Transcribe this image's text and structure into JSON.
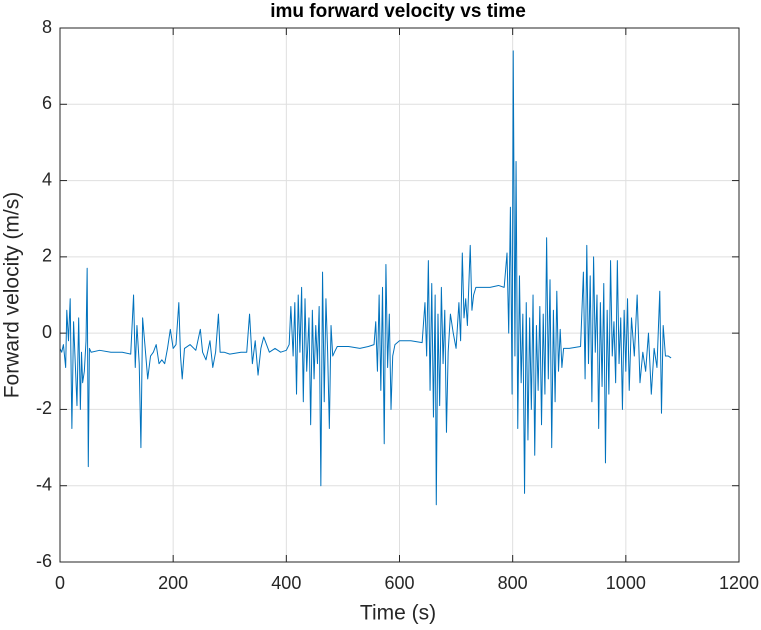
{
  "chart_data": {
    "type": "line",
    "title": "imu forward velocity vs time",
    "xlabel": "Time (s)",
    "ylabel": "Forward velocity (m/s)",
    "color": "#0072bd",
    "grid": true,
    "xlim": [
      0,
      1200
    ],
    "xticks": [
      0,
      200,
      400,
      600,
      800,
      1000,
      1200
    ],
    "ylim": [
      -6,
      8
    ],
    "yticks": [
      -6,
      -4,
      -2,
      0,
      2,
      4,
      6,
      8
    ],
    "x": [
      0,
      3,
      6,
      10,
      12,
      15,
      18,
      21,
      24,
      27,
      30,
      33,
      36,
      38,
      40,
      43,
      46,
      48,
      50,
      52,
      55,
      70,
      90,
      110,
      125,
      130,
      133,
      136,
      140,
      143,
      146,
      150,
      155,
      160,
      165,
      170,
      175,
      180,
      185,
      190,
      195,
      200,
      205,
      210,
      213,
      216,
      220,
      230,
      240,
      248,
      252,
      258,
      265,
      270,
      275,
      280,
      283,
      290,
      300,
      320,
      330,
      335,
      340,
      345,
      350,
      355,
      360,
      370,
      380,
      390,
      400,
      405,
      408,
      412,
      415,
      418,
      421,
      424,
      427,
      430,
      433,
      436,
      440,
      443,
      446,
      449,
      452,
      455,
      458,
      461,
      464,
      467,
      470,
      473,
      476,
      479,
      482,
      485,
      490,
      510,
      530,
      545,
      555,
      558,
      561,
      564,
      567,
      570,
      573,
      576,
      579,
      582,
      585,
      588,
      592,
      600,
      620,
      640,
      645,
      648,
      651,
      654,
      657,
      660,
      663,
      665,
      668,
      671,
      674,
      677,
      680,
      683,
      686,
      690,
      695,
      700,
      705,
      708,
      711,
      714,
      717,
      720,
      725,
      728,
      731,
      735,
      740,
      760,
      775,
      785,
      790,
      793,
      796,
      799,
      801,
      804,
      806,
      809,
      812,
      815,
      818,
      821,
      824,
      827,
      830,
      833,
      836,
      839,
      842,
      845,
      848,
      851,
      854,
      857,
      860,
      863,
      866,
      869,
      872,
      875,
      878,
      881,
      884,
      887,
      890,
      900,
      920,
      925,
      928,
      931,
      934,
      937,
      940,
      943,
      946,
      949,
      952,
      955,
      958,
      961,
      964,
      967,
      970,
      973,
      976,
      979,
      982,
      985,
      988,
      991,
      994,
      997,
      1000,
      1003,
      1006,
      1010,
      1015,
      1020,
      1025,
      1030,
      1035,
      1040,
      1045,
      1050,
      1055,
      1060,
      1063,
      1066,
      1070,
      1075,
      1080
    ],
    "values": [
      -0.4,
      -0.5,
      -0.3,
      -0.9,
      0.6,
      -0.2,
      0.9,
      -2.5,
      0.3,
      -0.8,
      -1.9,
      0.4,
      -2.0,
      -0.5,
      -1.3,
      -1.0,
      -0.2,
      1.7,
      -3.5,
      -0.4,
      -0.5,
      -0.45,
      -0.5,
      -0.5,
      -0.55,
      1.0,
      -0.9,
      0.2,
      -0.8,
      -3.0,
      0.4,
      -0.3,
      -1.2,
      -0.6,
      -0.5,
      -0.3,
      -0.8,
      -0.7,
      -0.8,
      -0.4,
      0.1,
      -0.4,
      -0.3,
      0.8,
      -0.6,
      -1.2,
      -0.4,
      -0.3,
      -0.45,
      0.1,
      -0.5,
      -0.7,
      -0.2,
      -0.9,
      -0.5,
      0.5,
      -0.5,
      -0.5,
      -0.55,
      -0.5,
      -0.5,
      0.5,
      -0.8,
      -0.2,
      -1.1,
      -0.4,
      -0.1,
      -0.5,
      -0.4,
      -0.5,
      -0.45,
      -0.3,
      0.7,
      -0.6,
      0.8,
      -1.6,
      1.0,
      -0.5,
      1.2,
      -1.8,
      0.9,
      -1.0,
      0.4,
      -2.4,
      0.6,
      -1.2,
      0.2,
      -0.8,
      0.7,
      -4.0,
      1.6,
      -1.8,
      0.9,
      -0.5,
      -2.5,
      0.2,
      -0.6,
      -0.5,
      -0.35,
      -0.35,
      -0.4,
      -0.35,
      -0.3,
      0.3,
      -1.0,
      1.0,
      -1.5,
      1.2,
      -2.9,
      1.8,
      -0.9,
      0.5,
      -2.0,
      -0.6,
      -0.3,
      -0.2,
      -0.2,
      -0.25,
      0.8,
      -0.6,
      1.9,
      -1.5,
      1.3,
      -2.2,
      1.0,
      -4.5,
      0.5,
      -1.9,
      1.2,
      -0.8,
      0.6,
      -2.6,
      -0.5,
      0.5,
      0.0,
      -0.4,
      0.8,
      -0.2,
      2.1,
      0.4,
      0.9,
      0.2,
      2.3,
      0.6,
      1.0,
      1.2,
      1.2,
      1.2,
      1.25,
      1.2,
      2.1,
      0.0,
      3.3,
      -1.6,
      7.4,
      -0.6,
      4.5,
      -2.5,
      1.5,
      -1.3,
      0.5,
      -4.2,
      0.8,
      -2.8,
      0.4,
      -2.0,
      1.0,
      -3.2,
      0.2,
      -1.5,
      0.7,
      -2.4,
      0.5,
      -1.6,
      2.5,
      -1.2,
      1.4,
      -3.0,
      0.6,
      -1.8,
      1.1,
      -1.0,
      0.1,
      -0.9,
      -0.4,
      -0.4,
      -0.35,
      1.6,
      -1.2,
      2.3,
      -0.8,
      1.5,
      -1.8,
      2.0,
      -0.5,
      1.0,
      -2.5,
      0.8,
      -1.4,
      1.3,
      -3.4,
      0.6,
      -1.6,
      1.9,
      -0.6,
      0.3,
      -1.3,
      1.9,
      -0.8,
      0.4,
      -2.0,
      0.6,
      -1.0,
      0.9,
      -1.5,
      0.4,
      -0.6,
      1.0,
      -1.3,
      -0.5,
      -1.0,
      0.0,
      -1.6,
      -0.4,
      -0.9,
      1.1,
      -2.1,
      0.2,
      -0.6,
      -0.6,
      -0.65
    ]
  }
}
